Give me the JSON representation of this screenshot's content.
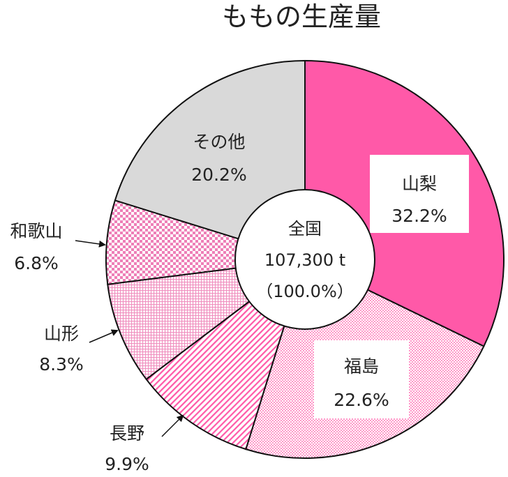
{
  "chart_data": {
    "type": "pie",
    "title": "ももの生産量",
    "center": {
      "label": "全国",
      "total": "107,300 t",
      "share": "（100.0%）"
    },
    "slices": [
      {
        "name": "山梨",
        "value": 32.2,
        "label": "32.2%",
        "fill": "#ff59a8",
        "pattern": "solid"
      },
      {
        "name": "福島",
        "value": 22.6,
        "label": "22.6%",
        "fill": "#ffb3d6",
        "pattern": "dots"
      },
      {
        "name": "長野",
        "value": 9.9,
        "label": "9.9%",
        "fill": "#ff80bd",
        "pattern": "stripes"
      },
      {
        "name": "山形",
        "value": 8.3,
        "label": "8.3%",
        "fill": "#f3a6cc",
        "pattern": "grid"
      },
      {
        "name": "和歌山",
        "value": 6.8,
        "label": "6.8%",
        "fill": "#ee88bb",
        "pattern": "checker"
      },
      {
        "name": "その他",
        "value": 20.2,
        "label": "20.2%",
        "fill": "#d9d9d9",
        "pattern": "solid"
      }
    ],
    "start_angle": "12 o'clock",
    "direction": "clockwise",
    "legend": "none"
  }
}
